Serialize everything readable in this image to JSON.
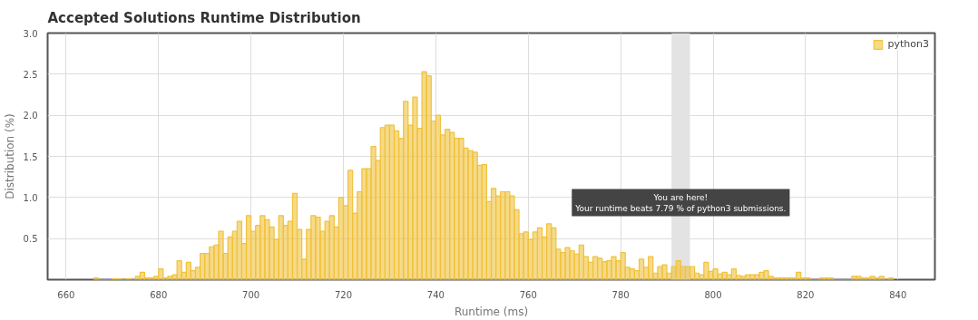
{
  "chart_data": {
    "type": "histogram",
    "title": "Accepted Solutions Runtime Distribution",
    "xlabel": "Runtime (ms)",
    "ylabel": "Distribution (%)",
    "bins": [
      666,
      667,
      668,
      669,
      670,
      671,
      672,
      673,
      674,
      675,
      676,
      677,
      678,
      679,
      680,
      681,
      682,
      683,
      684,
      685,
      686,
      687,
      688,
      689,
      690,
      691,
      692,
      693,
      694,
      695,
      696,
      697,
      698,
      699,
      700,
      701,
      702,
      703,
      704,
      705,
      706,
      707,
      708,
      709,
      710,
      711,
      712,
      713,
      714,
      715,
      716,
      717,
      718,
      719,
      720,
      721,
      722,
      723,
      724,
      725,
      726,
      727,
      728,
      729,
      730,
      731,
      732,
      733,
      734,
      735,
      736,
      737,
      738,
      739,
      740,
      741,
      742,
      743,
      744,
      745,
      746,
      747,
      748,
      749,
      750,
      751,
      752,
      753,
      754,
      755,
      756,
      757,
      758,
      759,
      760,
      761,
      762,
      763,
      764,
      765,
      766,
      767,
      768,
      769,
      770,
      771,
      772,
      773,
      774,
      775,
      776,
      777,
      778,
      779,
      780,
      781,
      782,
      783,
      784,
      785,
      786,
      787,
      788,
      789,
      790,
      791,
      792,
      793,
      794,
      795,
      796,
      797,
      798,
      799,
      800,
      801,
      802,
      803,
      804,
      805,
      806,
      807,
      808,
      809,
      810,
      811,
      812,
      813,
      814,
      815,
      816,
      817,
      818,
      819,
      820,
      821,
      822,
      823,
      824,
      825,
      826,
      827,
      828,
      829,
      830,
      831,
      832,
      833,
      834,
      835,
      836,
      837,
      838,
      839
    ],
    "series": [
      {
        "name": "python3",
        "color": "#f0c23b",
        "values": [
          0.02,
          0,
          0,
          0,
          0.01,
          0.01,
          0,
          0.01,
          0,
          0.04,
          0.09,
          0.02,
          0.02,
          0.04,
          0.13,
          0.02,
          0.04,
          0.06,
          0.23,
          0.09,
          0.21,
          0.11,
          0.15,
          0.32,
          0.32,
          0.4,
          0.42,
          0.59,
          0.32,
          0.52,
          0.59,
          0.71,
          0.44,
          0.78,
          0.59,
          0.66,
          0.78,
          0.73,
          0.64,
          0.49,
          0.78,
          0.66,
          0.71,
          1.05,
          0.61,
          0.25,
          0.61,
          0.78,
          0.76,
          0.59,
          0.71,
          0.78,
          0.64,
          1.0,
          0.9,
          1.33,
          0.81,
          1.07,
          1.35,
          1.35,
          1.62,
          1.45,
          1.85,
          1.88,
          1.88,
          1.81,
          1.72,
          2.17,
          1.88,
          2.22,
          1.84,
          2.53,
          2.48,
          1.93,
          2.0,
          1.76,
          1.83,
          1.79,
          1.72,
          1.72,
          1.6,
          1.57,
          1.55,
          1.39,
          1.4,
          0.95,
          1.11,
          1.02,
          1.07,
          1.07,
          1.02,
          0.85,
          0.56,
          0.58,
          0.49,
          0.58,
          0.63,
          0.52,
          0.68,
          0.63,
          0.37,
          0.33,
          0.39,
          0.35,
          0.31,
          0.42,
          0.28,
          0.21,
          0.28,
          0.26,
          0.22,
          0.23,
          0.28,
          0.23,
          0.33,
          0.15,
          0.13,
          0.11,
          0.25,
          0.15,
          0.28,
          0.08,
          0.16,
          0.18,
          0.08,
          0.16,
          0.23,
          0.16,
          0.16,
          0.16,
          0.08,
          0.06,
          0.21,
          0.1,
          0.13,
          0.07,
          0.09,
          0.06,
          0.13,
          0.05,
          0.04,
          0.06,
          0.06,
          0.06,
          0.09,
          0.11,
          0.04,
          0.02,
          0.02,
          0.02,
          0.02,
          0.02,
          0.09,
          0.02,
          0.02,
          0,
          0,
          0.02,
          0.02,
          0.02,
          0,
          0,
          0,
          0,
          0.04,
          0.04,
          0.02,
          0.02,
          0.04,
          0.02,
          0.04,
          0,
          0.02
        ]
      }
    ],
    "xlim": [
      656,
      848
    ],
    "xticks": [
      660,
      680,
      700,
      720,
      740,
      760,
      780,
      800,
      820,
      840
    ],
    "ylim": [
      0,
      3.0
    ],
    "yticks": [
      {
        "value": 0.5,
        "label": "0.5"
      },
      {
        "value": 1,
        "label": "1.0"
      },
      {
        "value": 1.5,
        "label": "1.5"
      },
      {
        "value": 2,
        "label": "2.0"
      },
      {
        "value": 2.5,
        "label": "2.5"
      },
      {
        "value": 3,
        "label": "3.0"
      }
    ],
    "bands": [
      {
        "axis": "x",
        "from": 791,
        "to": 795,
        "color": "#e3e3e3"
      }
    ],
    "annotations": [
      "You are here!\nYour runtime beats 7.79 % of python3 submissions."
    ],
    "grid": true,
    "legend": "top right"
  }
}
